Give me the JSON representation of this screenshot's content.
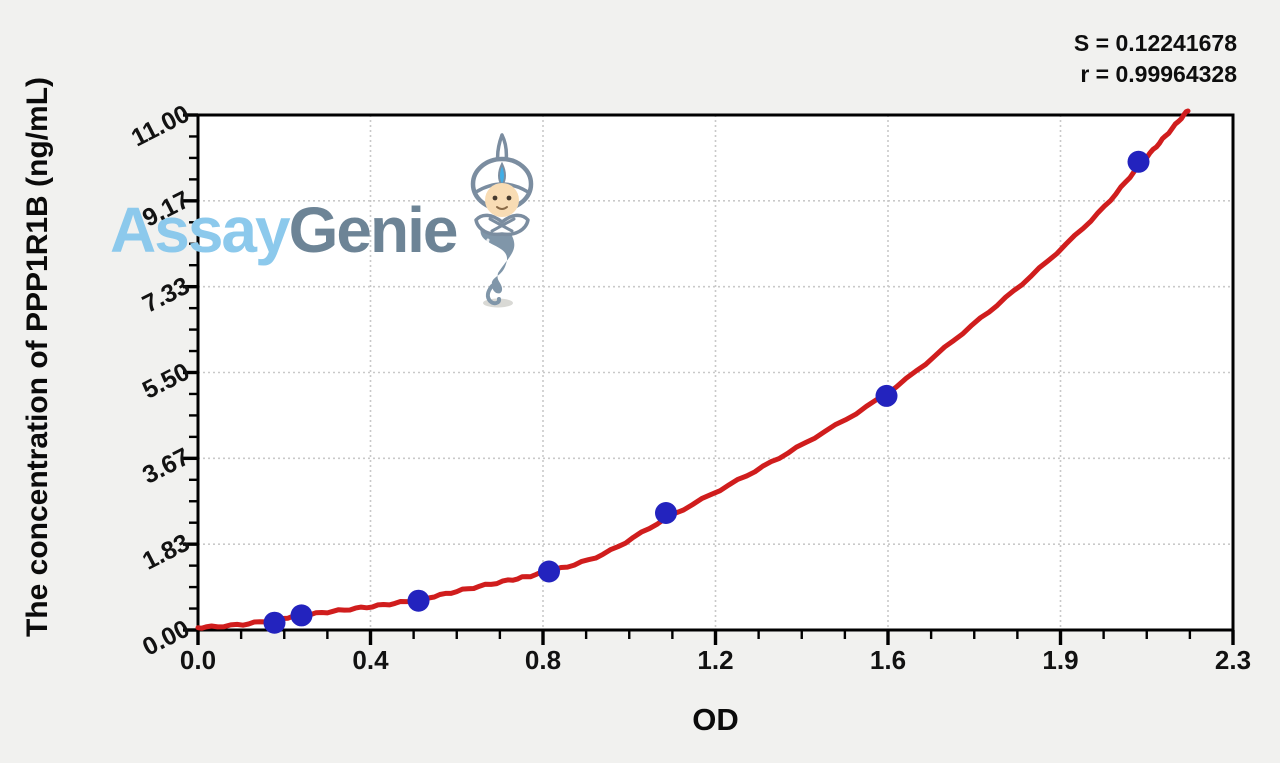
{
  "stats": {
    "s_line": "S = 0.12241678",
    "r_line": "r = 0.99964328"
  },
  "watermark": {
    "brand_first": "Assay",
    "brand_second": "Genie",
    "first_color": "#8cc9ec",
    "second_color": "#6d8496"
  },
  "chart_data": {
    "type": "scatter",
    "title": "",
    "xlabel": "OD",
    "ylabel": "The concentration of PPP1R1B (ng/mL)",
    "xlim": [
      0,
      2.3
    ],
    "ylim": [
      0,
      11
    ],
    "x_tick_labels": [
      "0.0",
      "0.4",
      "0.8",
      "1.2",
      "1.6",
      "1.9",
      "2.3"
    ],
    "y_tick_labels": [
      "0.00",
      "1.83",
      "3.67",
      "5.50",
      "7.33",
      "9.17",
      "11.00"
    ],
    "minor_divisions_per_major": 4,
    "grid": "dotted gray lines at major ticks",
    "legend": "none",
    "colors": {
      "curve": "#d01d1d",
      "points": "#2323be",
      "grid": "#c9c9c9",
      "axis": "#000000",
      "plot_background": "#ffffff",
      "page_background": "#f1f1ef"
    },
    "series": [
      {
        "name": "standard-points",
        "type": "scatter",
        "marker": "circle",
        "marker_radius": 11,
        "points": [
          {
            "od": 0.17,
            "conc": 0.156
          },
          {
            "od": 0.23,
            "conc": 0.3125
          },
          {
            "od": 0.49,
            "conc": 0.625
          },
          {
            "od": 0.78,
            "conc": 1.25
          },
          {
            "od": 1.04,
            "conc": 2.5
          },
          {
            "od": 1.53,
            "conc": 5.0
          },
          {
            "od": 2.09,
            "conc": 10.0
          }
        ]
      },
      {
        "name": "fit-curve",
        "type": "line",
        "stroke_width": 5,
        "points": [
          {
            "od": 0.0,
            "conc": 0.05
          },
          {
            "od": 0.1,
            "conc": 0.12
          },
          {
            "od": 0.2,
            "conc": 0.27
          },
          {
            "od": 0.3,
            "conc": 0.4
          },
          {
            "od": 0.4,
            "conc": 0.52
          },
          {
            "od": 0.5,
            "conc": 0.67
          },
          {
            "od": 0.6,
            "conc": 0.88
          },
          {
            "od": 0.7,
            "conc": 1.08
          },
          {
            "od": 0.78,
            "conc": 1.25
          },
          {
            "od": 0.9,
            "conc": 1.62
          },
          {
            "od": 1.04,
            "conc": 2.38
          },
          {
            "od": 1.2,
            "conc": 3.2
          },
          {
            "od": 1.35,
            "conc": 4.0
          },
          {
            "od": 1.53,
            "conc": 5.05
          },
          {
            "od": 1.7,
            "conc": 6.35
          },
          {
            "od": 1.85,
            "conc": 7.55
          },
          {
            "od": 2.0,
            "conc": 8.9
          },
          {
            "od": 2.09,
            "conc": 9.9
          },
          {
            "od": 2.15,
            "conc": 10.55
          },
          {
            "od": 2.2,
            "conc": 11.1
          }
        ]
      }
    ]
  }
}
